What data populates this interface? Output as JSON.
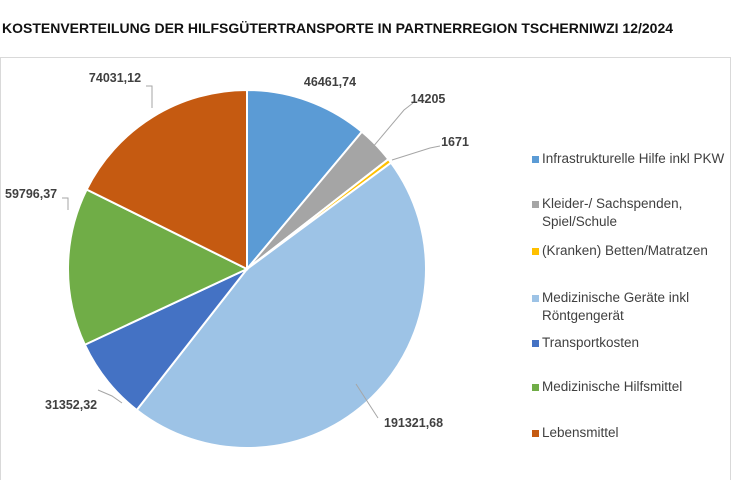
{
  "chart_data": {
    "type": "pie",
    "title": "KOSTENVERTEILUNG DER HILFSGÜTERTRANSPORTE IN PARTNERREGION TSCHERNIWZI 12/2024",
    "start_angle_deg": 0,
    "direction": "clockwise",
    "legend_position": "right",
    "slices": [
      {
        "name": "Infrastrukturelle Hilfe   inkl PKW",
        "value": 46461.74,
        "label": "46461,74",
        "color": "#5b9bd5"
      },
      {
        "name": "Kleider-/ Sachspenden, Spiel/Schule",
        "value": 14205,
        "label": "14205",
        "color": "#a5a5a5"
      },
      {
        "name": "(Kranken) Betten/Matratzen",
        "value": 1671,
        "label": "1671",
        "color": "#ffc000"
      },
      {
        "name": "Medizinische Geräte  inkl Röntgengerät",
        "value": 191321.68,
        "label": "191321,68",
        "color": "#9dc3e6"
      },
      {
        "name": "Transportkosten",
        "value": 31352.32,
        "label": "31352,32",
        "color": "#4472c4"
      },
      {
        "name": "Medizinische Hilfsmittel",
        "value": 59796.37,
        "label": "59796,37",
        "color": "#70ad47"
      },
      {
        "name": "Lebensmittel",
        "value": 74031.12,
        "label": "74031,12",
        "color": "#c55a11"
      }
    ]
  }
}
